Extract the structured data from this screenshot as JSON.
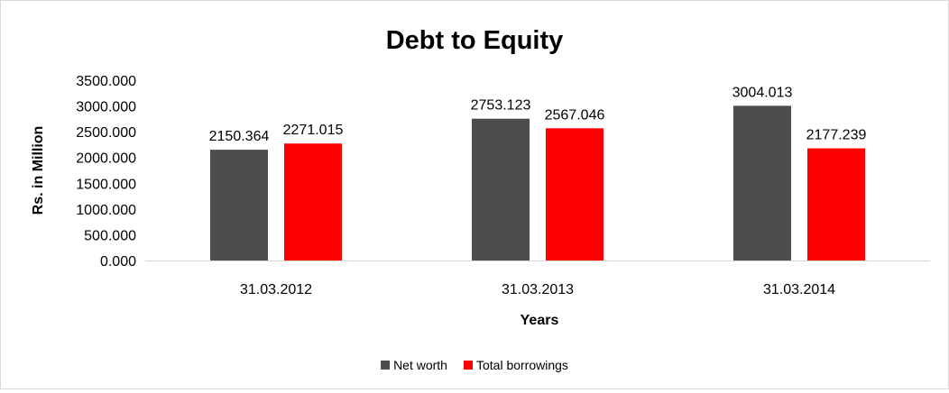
{
  "chart_data": {
    "type": "bar",
    "title": "Debt to Equity",
    "xlabel": "Years",
    "ylabel": "Rs. in Million",
    "categories": [
      "31.03.2012",
      "31.03.2013",
      "31.03.2014"
    ],
    "series": [
      {
        "name": "Net worth",
        "color": "#4d4d4d",
        "values": [
          2150.364,
          2753.123,
          3004.013
        ],
        "labels": [
          "2150.364",
          "2753.123",
          "3004.013"
        ]
      },
      {
        "name": "Total borrowings",
        "color": "#ff0000",
        "values": [
          2271.015,
          2567.046,
          2177.239
        ],
        "labels": [
          "2271.015",
          "2567.046",
          "2177.239"
        ]
      }
    ],
    "ylim": [
      0,
      3500
    ],
    "yticks": [
      "0.000",
      "500.000",
      "1000.000",
      "1500.000",
      "2000.000",
      "2500.000",
      "3000.000",
      "3500.000"
    ],
    "ytick_values": [
      0,
      500,
      1000,
      1500,
      2000,
      2500,
      3000,
      3500
    ],
    "grid": false,
    "legend_position": "bottom"
  }
}
